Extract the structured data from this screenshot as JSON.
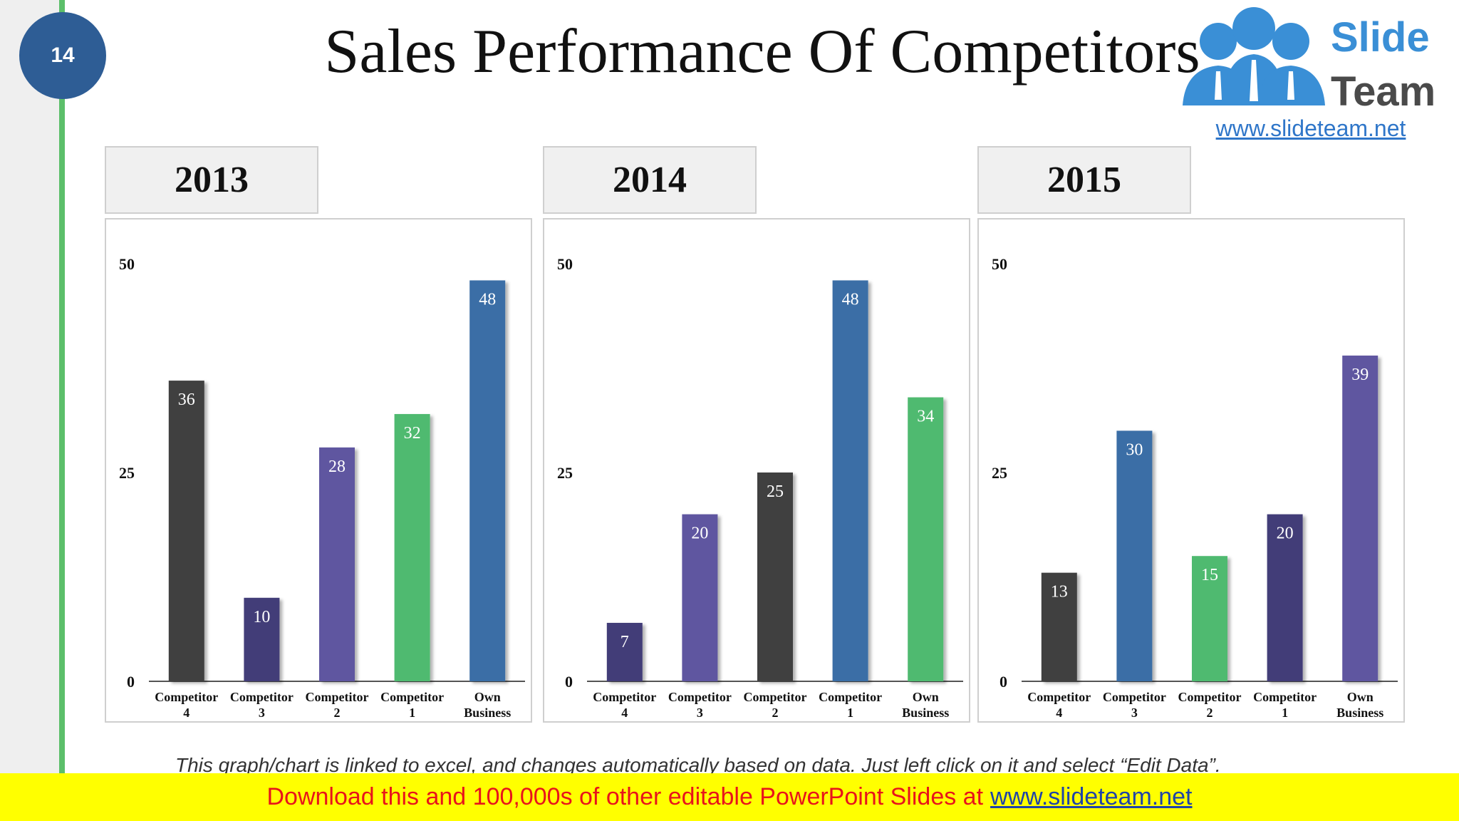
{
  "slide": {
    "number": "14",
    "title": "Sales Performance Of Competitors"
  },
  "logo": {
    "brand_top": "Slide",
    "brand_bottom": "Team",
    "url": "www.slideteam.net"
  },
  "note": "This graph/chart is linked to excel, and changes automatically based on data. Just left click on it and select “Edit Data”.",
  "banner": {
    "text": "Download this and 100,000s of other editable PowerPoint Slides at",
    "link": "www.slideteam.net"
  },
  "chart_data": [
    {
      "type": "bar",
      "title": "2013",
      "categories": [
        [
          "Competitor",
          "4"
        ],
        [
          "Competitor",
          "3"
        ],
        [
          "Competitor",
          "2"
        ],
        [
          "Competitor",
          "1"
        ],
        [
          "Own",
          "Business"
        ]
      ],
      "values": [
        36,
        10,
        28,
        32,
        48
      ],
      "colors": [
        "#404040",
        "#433e78",
        "#5e57a0",
        "#4fba6f",
        "#3b6ea6"
      ],
      "yticks": [
        0,
        25,
        50
      ],
      "ylim": [
        0,
        50
      ],
      "grid": false,
      "legend": "none"
    },
    {
      "type": "bar",
      "title": "2014",
      "categories": [
        [
          "Competitor",
          "4"
        ],
        [
          "Competitor",
          "3"
        ],
        [
          "Competitor",
          "2"
        ],
        [
          "Competitor",
          "1"
        ],
        [
          "Own",
          "Business"
        ]
      ],
      "values": [
        7,
        20,
        25,
        48,
        34
      ],
      "colors": [
        "#433e78",
        "#5e57a0",
        "#404040",
        "#3b6ea6",
        "#4fba6f"
      ],
      "yticks": [
        0,
        25,
        50
      ],
      "ylim": [
        0,
        50
      ],
      "grid": false,
      "legend": "none"
    },
    {
      "type": "bar",
      "title": "2015",
      "categories": [
        [
          "Competitor",
          "4"
        ],
        [
          "Competitor",
          "3"
        ],
        [
          "Competitor",
          "2"
        ],
        [
          "Competitor",
          "1"
        ],
        [
          "Own",
          "Business"
        ]
      ],
      "values": [
        13,
        30,
        15,
        20,
        39
      ],
      "colors": [
        "#404040",
        "#3b6ea6",
        "#4fba6f",
        "#433e78",
        "#5e57a0"
      ],
      "yticks": [
        0,
        25,
        50
      ],
      "ylim": [
        0,
        50
      ],
      "grid": false,
      "legend": "none"
    }
  ]
}
